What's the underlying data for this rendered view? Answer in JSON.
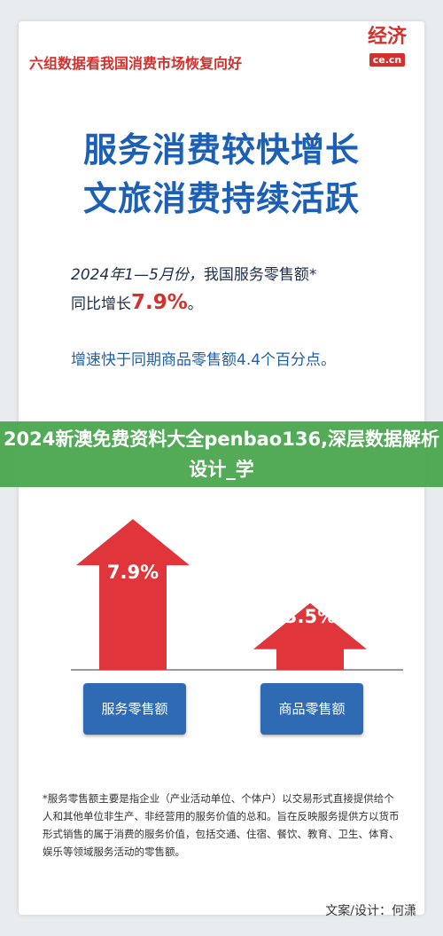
{
  "header": {
    "top_title": "六组数据看我国消费市场恢复向好",
    "logo_cn": "经济",
    "logo_en": "ce.cn"
  },
  "headline": {
    "line1": "服务消费较快增长",
    "line2": "文旅消费持续活跃"
  },
  "stat": {
    "prefix_italic": "2024年1—5月份，",
    "prefix_rest": "我国服务零售额*",
    "line2_prefix": "同比增长",
    "value": "7.9%",
    "suffix": "。"
  },
  "reason": "增速快于同期商品零售额4.4个百分点。",
  "watermark": "2024新澳免费资料大全penbao136,深层数据解析设计_学",
  "chart_data": {
    "type": "bar",
    "categories": [
      "服务零售额",
      "商品零售额"
    ],
    "values": [
      7.9,
      3.5
    ],
    "value_labels": [
      "7.9%",
      "3.5%"
    ],
    "unit": "%",
    "colors": {
      "bar": "#e0353a",
      "category_bg": "#2f6bb5"
    }
  },
  "footnote": "*服务零售额主要是指企业（产业活动单位、个体户）以交易形式直接提供给个人和其他单位非生产、非经营用的服务价值的总和。旨在反映服务提供方以货币形式销售的属于消费的服务价值，包括交通、住宿、餐饮、教育、卫生、体育、娱乐等领域服务活动的零售额。",
  "credit": "文案/设计：何潇"
}
